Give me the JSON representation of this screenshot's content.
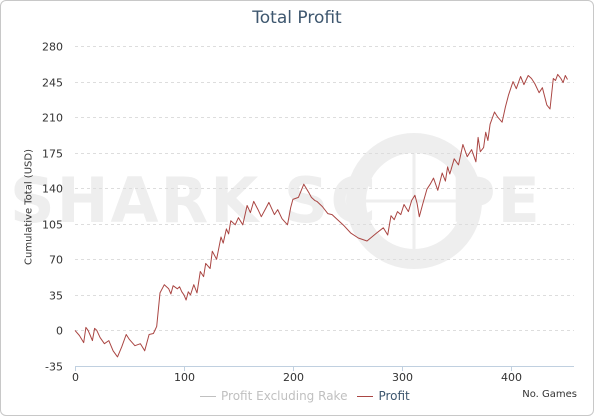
{
  "chart_data": {
    "type": "line",
    "title": "Total Profit",
    "xlabel": "No. Games",
    "ylabel": "Cumulative Total (USD)",
    "xlim": [
      0,
      458
    ],
    "ylim": [
      -35,
      280
    ],
    "yticks": [
      -35,
      0,
      35,
      70,
      105,
      140,
      175,
      210,
      245,
      280
    ],
    "xticks": [
      0,
      100,
      200,
      300,
      400
    ],
    "grid": true,
    "legend_position": "bottom-center",
    "series": [
      {
        "name": "Profit Excluding Rake",
        "color": "#c0c0c0",
        "visible": false,
        "x": [],
        "y": []
      },
      {
        "name": "Profit",
        "color": "#aa4643",
        "visible": true,
        "x": [
          0,
          4,
          8,
          10,
          12,
          14,
          16,
          18,
          20,
          23,
          27,
          31,
          35,
          39,
          43,
          47,
          50,
          55,
          60,
          64,
          68,
          72,
          75,
          78,
          82,
          86,
          88,
          90,
          94,
          96,
          98,
          100,
          102,
          104,
          106,
          109,
          112,
          115,
          118,
          120,
          124,
          126,
          130,
          134,
          136,
          139,
          141,
          143,
          147,
          150,
          154,
          158,
          161,
          164,
          168,
          171,
          175,
          178,
          183,
          186,
          190,
          195,
          198,
          200,
          205,
          210,
          215,
          217,
          220,
          222,
          227,
          232,
          236,
          240,
          247,
          253,
          260,
          268,
          277,
          283,
          287,
          290,
          293,
          296,
          299,
          302,
          306,
          309,
          312,
          314,
          316,
          319,
          323,
          326,
          329,
          333,
          337,
          340,
          342,
          344,
          348,
          352,
          356,
          360,
          364,
          368,
          370,
          372,
          375,
          377,
          379,
          381,
          385,
          388,
          392,
          395,
          398,
          402,
          405,
          409,
          412,
          416,
          419,
          422,
          426,
          429,
          433,
          436,
          439,
          441,
          443,
          446,
          448,
          450,
          452
        ],
        "y": [
          0,
          -5,
          -12,
          3,
          0,
          -5,
          -10,
          2,
          0,
          -7,
          -13,
          -10,
          -20,
          -26,
          -16,
          -4,
          -9,
          -15,
          -13,
          -20,
          -4,
          -3,
          4,
          37,
          45,
          41,
          36,
          44,
          41,
          43,
          38,
          35,
          30,
          38,
          35,
          45,
          37,
          58,
          53,
          66,
          61,
          78,
          70,
          92,
          86,
          100,
          95,
          108,
          104,
          111,
          104,
          123,
          116,
          127,
          119,
          112,
          120,
          126,
          114,
          119,
          110,
          104,
          121,
          129,
          131,
          144,
          135,
          131,
          128,
          127,
          122,
          115,
          114,
          110,
          103,
          96,
          91,
          88,
          96,
          101,
          94,
          113,
          109,
          117,
          114,
          124,
          117,
          128,
          133,
          125,
          112,
          124,
          139,
          144,
          150,
          138,
          155,
          147,
          161,
          154,
          169,
          163,
          183,
          171,
          178,
          166,
          190,
          176,
          180,
          195,
          187,
          203,
          215,
          210,
          205,
          220,
          232,
          245,
          238,
          250,
          242,
          251,
          248,
          243,
          234,
          239,
          222,
          218,
          248,
          246,
          252,
          248,
          244,
          251,
          247
        ]
      }
    ]
  }
}
